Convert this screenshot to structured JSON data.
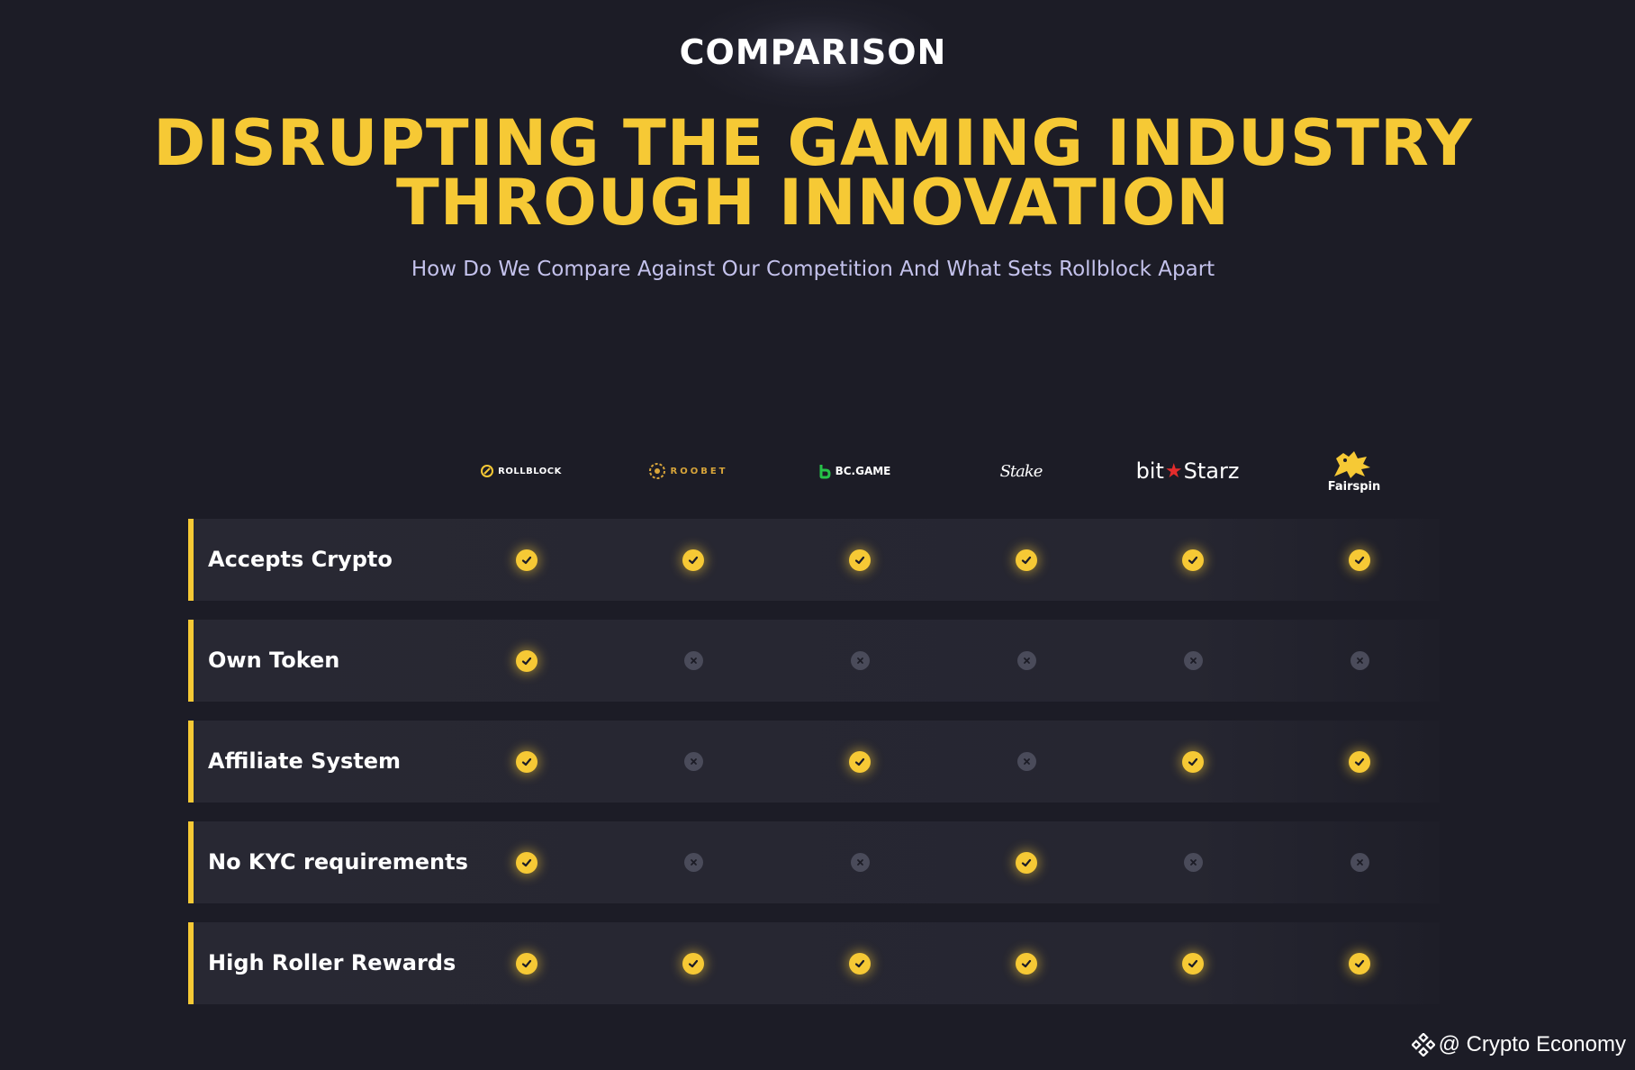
{
  "header": {
    "eyebrow": "COMPARISON",
    "headline_line1": "DISRUPTING THE GAMING INDUSTRY",
    "headline_line2": "THROUGH INNOVATION",
    "subtitle": "How Do We Compare Against Our Competition And What Sets Rollblock Apart"
  },
  "brands": [
    {
      "label": "ROLLBLOCK",
      "icon": "rollblock-logo-icon"
    },
    {
      "label": "ROOBET",
      "icon": "roobet-logo-icon"
    },
    {
      "label": "BC.GAME",
      "icon": "bcgame-logo-icon"
    },
    {
      "label": "Stake",
      "icon": "stake-logo"
    },
    {
      "label_left": "bit",
      "label_right": "Starz",
      "icon": "star-icon"
    },
    {
      "label": "Fairspin",
      "icon": "lion-logo-icon"
    }
  ],
  "features": [
    {
      "label": "Accepts Crypto",
      "values": [
        true,
        true,
        true,
        true,
        true,
        true
      ]
    },
    {
      "label": "Own Token",
      "values": [
        true,
        false,
        false,
        false,
        false,
        false
      ]
    },
    {
      "label": "Affiliate System",
      "values": [
        true,
        false,
        true,
        false,
        true,
        true
      ]
    },
    {
      "label": "No KYC requirements",
      "values": [
        true,
        false,
        false,
        true,
        false,
        false
      ]
    },
    {
      "label": "High Roller Rewards",
      "values": [
        true,
        true,
        true,
        true,
        true,
        true
      ]
    }
  ],
  "colors": {
    "accent": "#f6c935",
    "background": "#1c1c26",
    "row_background": "#282833",
    "subtitle": "#c4c2ec",
    "cross": "#4a4b5a"
  },
  "watermark": {
    "text": "@ Crypto Economy",
    "icon": "binance-logo-icon"
  }
}
